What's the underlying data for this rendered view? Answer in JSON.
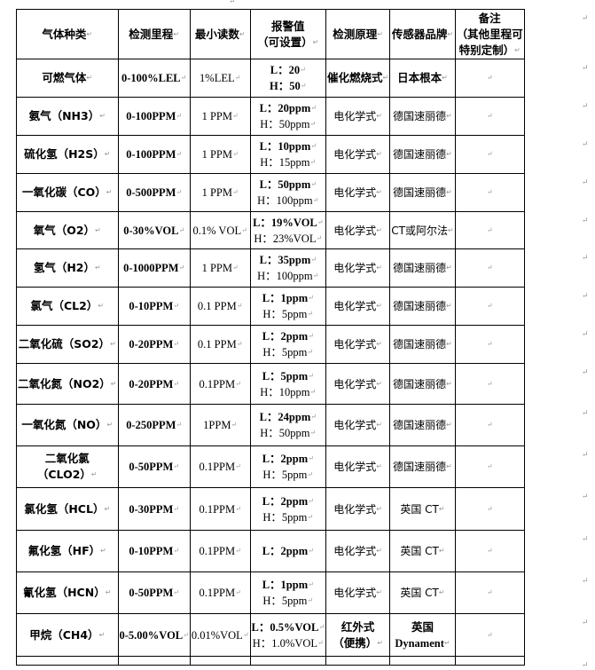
{
  "headers": [
    "气体种类",
    "检测里程",
    "最小读数",
    [
      "报警值",
      "（可设置）"
    ],
    "检测原理",
    "传感器品牌",
    [
      "备注",
      "（其他里程可",
      "特别定制）"
    ]
  ],
  "rows": [
    {
      "gas": [
        "可燃气体"
      ],
      "range": "0-100%LEL",
      "min": "1%LEL",
      "alarm_l": "L：20",
      "alarm_h": "H：50",
      "h_bold": true,
      "principle": [
        "催化燃烧式"
      ],
      "principle_bold": true,
      "brand": [
        "日本根本"
      ],
      "brand_bold": true
    },
    {
      "gas": [
        "氨气（NH3）"
      ],
      "range": "0-100PPM",
      "min": "1 PPM",
      "alarm_l": "L：20ppm",
      "alarm_h": "H：50ppm",
      "principle": [
        "电化学式"
      ],
      "brand": [
        "德国速丽德"
      ]
    },
    {
      "gas": [
        "硫化氢（H2S）"
      ],
      "range": "0-100PPM",
      "min": "1 PPM",
      "alarm_l": "L：10ppm",
      "alarm_h": "H：15ppm",
      "principle": [
        "电化学式"
      ],
      "brand": [
        "德国速丽德"
      ]
    },
    {
      "gas": [
        "一氧化碳（CO）"
      ],
      "range": "0-500PPM",
      "min": "1 PPM",
      "alarm_l": "L：50ppm",
      "alarm_h": "H：100ppm",
      "principle": [
        "电化学式"
      ],
      "brand": [
        "德国速丽德"
      ]
    },
    {
      "gas": [
        "氧气（O2）"
      ],
      "range": "0-30%VOL",
      "min": "0.1% VOL",
      "alarm_l": "L：19%VOL",
      "alarm_h": "H：23%VOL",
      "principle": [
        "电化学式"
      ],
      "brand": [
        "CT或阿尔法"
      ]
    },
    {
      "gas": [
        "氢气（H2）"
      ],
      "range": "0-1000PPM",
      "min": "1 PPM",
      "alarm_l": "L：35ppm",
      "alarm_h": "H：100ppm",
      "principle": [
        "电化学式"
      ],
      "brand": [
        "德国速丽德"
      ]
    },
    {
      "gas": [
        "氯气（CL2）"
      ],
      "range": "0-10PPM",
      "min": "0.1 PPM",
      "alarm_l": "L：1ppm",
      "alarm_h": "H：5ppm",
      "principle": [
        "电化学式"
      ],
      "brand": [
        "德国速丽德"
      ]
    },
    {
      "gas": [
        "二氧化硫（SO2）"
      ],
      "range": "0-20PPM",
      "min": "0.1 PPM",
      "alarm_l": "L：2ppm",
      "alarm_h": "H：5ppm",
      "principle": [
        "电化学式"
      ],
      "brand": [
        "德国速丽德"
      ]
    },
    {
      "gas": [
        "二氧化氮（NO2）"
      ],
      "range": "0-20PPM",
      "min": "0.1PPM",
      "alarm_l": "L：5ppm",
      "alarm_h": "H：10ppm",
      "principle": [
        "电化学式"
      ],
      "brand": [
        "德国速丽德"
      ]
    },
    {
      "gas": [
        "一氧化氮（NO）"
      ],
      "range": "0-250PPM",
      "min": "1PPM",
      "alarm_l": "L：24ppm",
      "alarm_h": "H：50ppm",
      "principle": [
        "电化学式"
      ],
      "brand": [
        "德国速丽德"
      ]
    },
    {
      "gas": [
        "二氧化氯",
        "（CLO2）"
      ],
      "range": "0-50PPM",
      "min": "0.1PPM",
      "alarm_l": "L：2ppm",
      "alarm_h": "H：5ppm",
      "principle": [
        "电化学式"
      ],
      "brand": [
        "德国速丽德"
      ]
    },
    {
      "gas": [
        "氯化氢（HCL）"
      ],
      "range": "0-30PPM",
      "min": "0.1PPM",
      "alarm_l": "L：2ppm",
      "alarm_h": "H：5ppm",
      "principle": [
        "电化学式"
      ],
      "brand": [
        "英国 CT"
      ]
    },
    {
      "gas": [
        "氟化氢（HF）"
      ],
      "range": "0-10PPM",
      "min": "0.1PPM",
      "alarm_l": "L：2ppm",
      "alarm_h": null,
      "principle": [
        "电化学式"
      ],
      "brand": [
        "英国 CT"
      ]
    },
    {
      "gas": [
        "氰化氢（HCN）"
      ],
      "range": "0-50PPM",
      "min": "0.1PPM",
      "alarm_l": "L：1ppm",
      "alarm_h": "H：5ppm",
      "principle": [
        "电化学式"
      ],
      "brand": [
        "英国 CT"
      ]
    },
    {
      "gas": [
        "甲烷（CH4）"
      ],
      "range": "0-5.00%VOL",
      "min": "0.01%VOL",
      "alarm_l": "L：0.5%VOL",
      "alarm_h": "H：1.0%VOL",
      "principle": [
        "红外式",
        "（便携）"
      ],
      "principle_bold": true,
      "brand": [
        "英国",
        "Dynament"
      ],
      "brand_bold": true
    }
  ]
}
